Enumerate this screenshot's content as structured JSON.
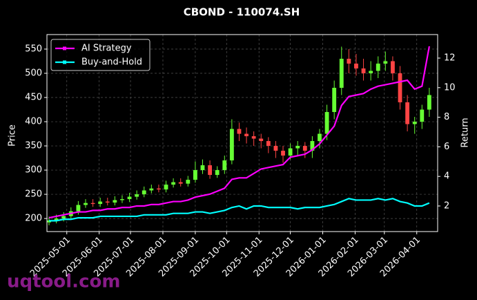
{
  "chart_data": {
    "type": "candlestick",
    "title": "CBOND - 110074.SH",
    "watermark": "uqtool.com",
    "y_label": "Price",
    "y2_label": "Return",
    "x": [
      "2025-04-14",
      "2025-04-21",
      "2025-04-28",
      "2025-05-05",
      "2025-05-12",
      "2025-05-19",
      "2025-05-26",
      "2025-06-02",
      "2025-06-09",
      "2025-06-16",
      "2025-06-23",
      "2025-06-30",
      "2025-07-07",
      "2025-07-14",
      "2025-07-21",
      "2025-07-28",
      "2025-08-04",
      "2025-08-11",
      "2025-08-18",
      "2025-08-25",
      "2025-09-01",
      "2025-09-08",
      "2025-09-15",
      "2025-09-22",
      "2025-09-29",
      "2025-10-06",
      "2025-10-13",
      "2025-10-20",
      "2025-10-27",
      "2025-11-03",
      "2025-11-10",
      "2025-11-17",
      "2025-11-24",
      "2025-12-01",
      "2025-12-08",
      "2025-12-15",
      "2025-12-22",
      "2025-12-29",
      "2026-01-05",
      "2026-01-12",
      "2026-01-19",
      "2026-01-26",
      "2026-02-02",
      "2026-02-09",
      "2026-02-16",
      "2026-02-23",
      "2026-03-02",
      "2026-03-09",
      "2026-03-16",
      "2026-03-23",
      "2026-03-30",
      "2026-04-06",
      "2026-04-13"
    ],
    "open": [
      192,
      196,
      200,
      205,
      215,
      228,
      232,
      230,
      235,
      233,
      238,
      240,
      245,
      250,
      258,
      262,
      260,
      270,
      275,
      272,
      280,
      300,
      310,
      290,
      300,
      320,
      385,
      375,
      370,
      365,
      360,
      350,
      340,
      330,
      345,
      350,
      340,
      360,
      375,
      420,
      470,
      530,
      520,
      510,
      500,
      505,
      520,
      525,
      500,
      440,
      395,
      400,
      425
    ],
    "high": [
      204,
      208,
      213,
      223,
      236,
      240,
      240,
      243,
      243,
      246,
      248,
      253,
      258,
      266,
      270,
      270,
      278,
      283,
      283,
      288,
      318,
      322,
      320,
      308,
      330,
      405,
      398,
      388,
      380,
      375,
      368,
      360,
      350,
      355,
      360,
      358,
      370,
      385,
      435,
      485,
      555,
      550,
      540,
      530,
      525,
      535,
      545,
      535,
      515,
      455,
      410,
      435,
      470
    ],
    "low": [
      186,
      190,
      194,
      198,
      208,
      222,
      224,
      224,
      227,
      227,
      232,
      234,
      239,
      244,
      252,
      254,
      254,
      264,
      266,
      266,
      274,
      292,
      282,
      284,
      292,
      312,
      360,
      355,
      350,
      345,
      335,
      325,
      315,
      322,
      330,
      325,
      325,
      345,
      362,
      405,
      455,
      500,
      495,
      485,
      485,
      490,
      505,
      485,
      425,
      380,
      375,
      385,
      410
    ],
    "close": [
      196,
      200,
      205,
      215,
      228,
      232,
      230,
      235,
      233,
      238,
      240,
      245,
      250,
      258,
      262,
      260,
      270,
      275,
      272,
      280,
      300,
      310,
      290,
      300,
      320,
      385,
      375,
      370,
      365,
      360,
      350,
      340,
      330,
      345,
      350,
      340,
      360,
      375,
      420,
      470,
      530,
      520,
      510,
      500,
      505,
      520,
      525,
      500,
      440,
      395,
      400,
      425,
      455
    ],
    "up_color": "#66ff33",
    "down_color": "#ff4444",
    "series": [
      {
        "name": "AI Strategy",
        "color": "#ff00ff",
        "axis": "y2",
        "values": [
          1.2,
          1.3,
          1.4,
          1.5,
          1.6,
          1.6,
          1.7,
          1.7,
          1.8,
          1.8,
          1.9,
          1.9,
          2.0,
          2.0,
          2.1,
          2.1,
          2.2,
          2.3,
          2.3,
          2.4,
          2.6,
          2.7,
          2.8,
          3.0,
          3.2,
          3.8,
          3.9,
          3.9,
          4.2,
          4.5,
          4.6,
          4.7,
          4.8,
          5.3,
          5.4,
          5.5,
          5.8,
          6.2,
          6.8,
          7.4,
          8.8,
          9.4,
          9.5,
          9.6,
          9.9,
          10.1,
          10.2,
          10.3,
          10.4,
          10.5,
          9.9,
          10.1,
          12.8
        ]
      },
      {
        "name": "Buy-and-Hold",
        "color": "#00ffff",
        "axis": "y2",
        "values": [
          1.0,
          1.0,
          1.1,
          1.1,
          1.2,
          1.2,
          1.2,
          1.3,
          1.3,
          1.3,
          1.3,
          1.3,
          1.3,
          1.4,
          1.4,
          1.4,
          1.4,
          1.5,
          1.5,
          1.5,
          1.6,
          1.6,
          1.5,
          1.6,
          1.7,
          1.9,
          2.0,
          1.8,
          2.0,
          2.0,
          1.9,
          1.9,
          1.9,
          1.9,
          1.8,
          1.9,
          1.9,
          1.9,
          2.0,
          2.1,
          2.3,
          2.5,
          2.4,
          2.4,
          2.4,
          2.5,
          2.4,
          2.5,
          2.3,
          2.2,
          2.0,
          2.0,
          2.2
        ]
      }
    ],
    "xlim": [
      "2025-04-12",
      "2026-04-21"
    ],
    "xticks": [
      "2025-05-01",
      "2025-06-01",
      "2025-07-01",
      "2025-08-01",
      "2025-09-01",
      "2025-10-01",
      "2025-11-01",
      "2025-12-01",
      "2026-01-01",
      "2026-02-01",
      "2026-03-01",
      "2026-04-01"
    ],
    "ylim": [
      173,
      580
    ],
    "yticks": [
      200,
      250,
      300,
      350,
      400,
      450,
      500,
      550
    ],
    "y2lim": [
      0.27,
      13.59
    ],
    "y2ticks": [
      2,
      4,
      6,
      8,
      10,
      12
    ],
    "grid": true,
    "legend": "upper-left"
  }
}
